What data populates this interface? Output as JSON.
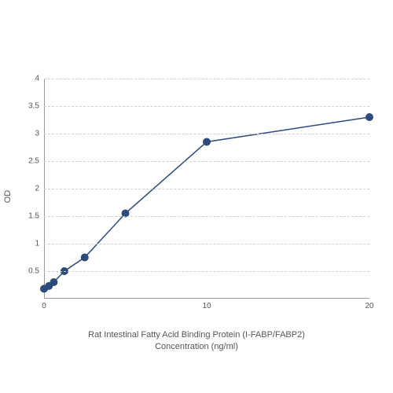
{
  "chart": {
    "type": "line",
    "xlabel_line1": "Rat Intestinal Fatty Acid Binding Protein (I-FABP/FABP2)",
    "xlabel_line2": "Concentration (ng/ml)",
    "ylabel": "OD",
    "xlim": [
      0,
      20
    ],
    "ylim": [
      0,
      4
    ],
    "x_ticks": [
      0,
      10,
      20
    ],
    "y_ticks": [
      0.5,
      1,
      1.5,
      2,
      2.5,
      3,
      3.5,
      4
    ],
    "background_color": "#ffffff",
    "grid_color": "#d0d0d0",
    "grid_dash": true,
    "line_color": "#2c4a7a",
    "line_width": 1.5,
    "marker_color": "#2c4a7a",
    "marker_radius": 4.5,
    "marker_style": "circle",
    "label_fontsize": 11,
    "tick_fontsize": 10,
    "series": {
      "x": [
        0,
        0.3,
        0.6,
        1.25,
        2.5,
        5,
        10,
        20
      ],
      "y": [
        0.18,
        0.23,
        0.3,
        0.5,
        0.75,
        1.55,
        2.85,
        3.3
      ]
    }
  }
}
